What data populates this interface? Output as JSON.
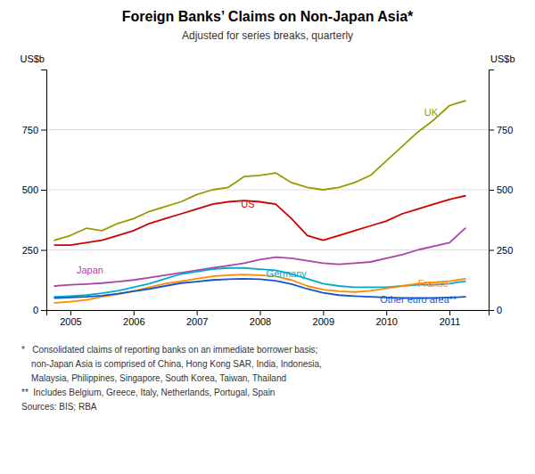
{
  "chart_data": {
    "type": "line",
    "title": "Foreign Banks’ Claims on Non-Japan Asia*",
    "subtitle": "Adjusted for series breaks, quarterly",
    "ylabel": "US$b",
    "y2label": "US$b",
    "xlim": [
      2004.62,
      2011.62
    ],
    "xticks": [
      2005,
      2006,
      2007,
      2008,
      2009,
      2010,
      2011
    ],
    "ylim": [
      0,
      1000
    ],
    "yticks": [
      0,
      250,
      500,
      750
    ],
    "y2lim": [
      0,
      1000
    ],
    "y2ticks": [
      0,
      250,
      500,
      750
    ],
    "grid": true,
    "x": [
      2004.75,
      2005.0,
      2005.25,
      2005.5,
      2005.75,
      2006.0,
      2006.25,
      2006.5,
      2006.75,
      2007.0,
      2007.25,
      2007.5,
      2007.75,
      2008.0,
      2008.25,
      2008.5,
      2008.75,
      2009.0,
      2009.25,
      2009.5,
      2009.75,
      2010.0,
      2010.25,
      2010.5,
      2010.75,
      2011.0,
      2011.25
    ],
    "series": [
      {
        "name": "UK",
        "color": "#999900",
        "label_x": 2010.6,
        "label_y": 820,
        "values": [
          290,
          310,
          340,
          330,
          360,
          380,
          410,
          430,
          450,
          480,
          500,
          510,
          555,
          560,
          570,
          530,
          510,
          500,
          510,
          530,
          560,
          620,
          680,
          740,
          790,
          850,
          870
        ]
      },
      {
        "name": "US",
        "color": "#cc0000",
        "label_x": 2007.7,
        "label_y": 435,
        "values": [
          270,
          270,
          280,
          290,
          310,
          330,
          360,
          380,
          400,
          420,
          440,
          450,
          455,
          450,
          440,
          380,
          310,
          290,
          310,
          330,
          350,
          370,
          400,
          420,
          440,
          460,
          475
        ]
      },
      {
        "name": "Japan",
        "color": "#aa44aa",
        "label_x": 2005.1,
        "label_y": 162,
        "values": [
          100,
          105,
          108,
          112,
          118,
          125,
          135,
          145,
          155,
          165,
          175,
          185,
          195,
          210,
          220,
          215,
          205,
          195,
          190,
          195,
          200,
          215,
          230,
          250,
          265,
          280,
          340
        ]
      },
      {
        "name": "Germany",
        "color": "#00aacc",
        "label_x": 2008.1,
        "label_y": 148,
        "values": [
          55,
          58,
          62,
          70,
          80,
          95,
          110,
          130,
          150,
          160,
          170,
          175,
          175,
          170,
          165,
          150,
          130,
          110,
          100,
          95,
          95,
          95,
          100,
          105,
          105,
          110,
          120
        ]
      },
      {
        "name": "France",
        "color": "#ff8800",
        "label_x": 2010.5,
        "label_y": 108,
        "values": [
          30,
          35,
          42,
          55,
          65,
          78,
          95,
          110,
          120,
          130,
          140,
          145,
          148,
          145,
          140,
          125,
          100,
          85,
          78,
          75,
          80,
          90,
          100,
          110,
          115,
          120,
          130
        ]
      },
      {
        "name": "Other euro area**",
        "color": "#1155cc",
        "label_x": 2009.9,
        "label_y": 42,
        "values": [
          50,
          52,
          55,
          60,
          68,
          78,
          88,
          100,
          112,
          118,
          125,
          128,
          130,
          128,
          122,
          108,
          88,
          72,
          62,
          58,
          55,
          52,
          50,
          50,
          50,
          52,
          55
        ]
      }
    ],
    "footnotes": [
      "*   Consolidated claims of reporting banks on an immediate borrower basis;",
      "    non-Japan Asia is comprised of China, Hong Kong SAR, India, Indonesia,",
      "    Malaysia, Philippines, Singapore, South Korea, Taiwan, Thailand",
      "**  Includes Belgium, Greece, Italy, Netherlands, Portugal, Spain",
      "Sources: BIS; RBA"
    ]
  }
}
